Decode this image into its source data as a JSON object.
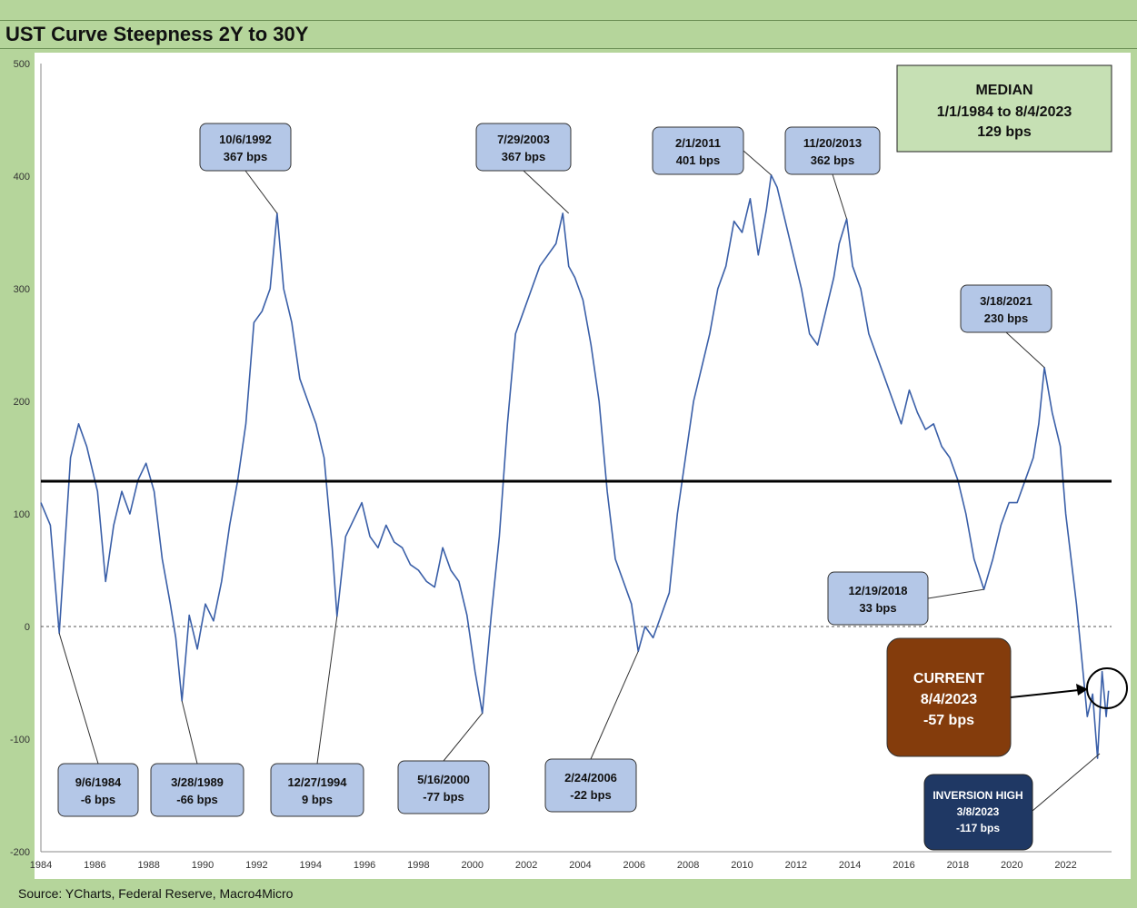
{
  "page": {
    "title": "UST Curve Steepness 2Y to 30Y",
    "source": "Source: YCharts, Federal Reserve, Macro4Micro"
  },
  "colors": {
    "background": "#b5d59b",
    "series": "#3a5fa8",
    "callout_fill": "#b4c7e7",
    "median_fill": "#c6e0b4",
    "current_fill": "#843c0c",
    "inversion_fill": "#1f3864"
  },
  "chart_data": {
    "type": "line",
    "title": "UST Curve Steepness 2Y to 30Y",
    "xlabel": "",
    "ylabel": "",
    "xlim": [
      1984,
      2023.7
    ],
    "ylim": [
      -200,
      500
    ],
    "x_ticks": [
      "1984",
      "1986",
      "1988",
      "1990",
      "1992",
      "1994",
      "1996",
      "1998",
      "2000",
      "2002",
      "2004",
      "2006",
      "2008",
      "2010",
      "2012",
      "2014",
      "2016",
      "2018",
      "2020",
      "2022"
    ],
    "y_ticks": [
      "500",
      "400",
      "300",
      "200",
      "100",
      "0",
      "-100",
      "-200"
    ],
    "median_line": 129,
    "zero_line": 0,
    "series": [
      {
        "name": "",
        "x": [
          1984.0,
          1984.35,
          1984.68,
          1985.1,
          1985.4,
          1985.7,
          1986.1,
          1986.4,
          1986.7,
          1987.0,
          1987.3,
          1987.6,
          1987.9,
          1988.2,
          1988.5,
          1988.8,
          1989.0,
          1989.23,
          1989.5,
          1989.8,
          1990.1,
          1990.4,
          1990.7,
          1991.0,
          1991.3,
          1991.6,
          1991.9,
          1992.2,
          1992.5,
          1992.76,
          1993.0,
          1993.3,
          1993.6,
          1993.9,
          1994.2,
          1994.5,
          1994.8,
          1994.98,
          1995.3,
          1995.6,
          1995.9,
          1996.2,
          1996.5,
          1996.8,
          1997.1,
          1997.4,
          1997.7,
          1998.0,
          1998.3,
          1998.6,
          1998.9,
          1999.2,
          1999.5,
          1999.8,
          2000.1,
          2000.37,
          2000.7,
          2001.0,
          2001.3,
          2001.6,
          2001.9,
          2002.2,
          2002.5,
          2002.8,
          2003.1,
          2003.35,
          2003.57,
          2003.8,
          2004.1,
          2004.4,
          2004.7,
          2005.0,
          2005.3,
          2005.6,
          2005.9,
          2006.15,
          2006.4,
          2006.7,
          2007.0,
          2007.3,
          2007.6,
          2007.9,
          2008.2,
          2008.5,
          2008.8,
          2009.1,
          2009.4,
          2009.7,
          2010.0,
          2010.3,
          2010.6,
          2010.9,
          2011.08,
          2011.3,
          2011.6,
          2011.9,
          2012.2,
          2012.5,
          2012.8,
          2013.1,
          2013.4,
          2013.6,
          2013.88,
          2014.1,
          2014.4,
          2014.7,
          2015.0,
          2015.3,
          2015.6,
          2015.9,
          2016.2,
          2016.5,
          2016.8,
          2017.1,
          2017.4,
          2017.7,
          2018.0,
          2018.3,
          2018.6,
          2018.97,
          2019.3,
          2019.6,
          2019.9,
          2020.2,
          2020.5,
          2020.8,
          2021.0,
          2021.21,
          2021.5,
          2021.8,
          2022.0,
          2022.2,
          2022.4,
          2022.6,
          2022.8,
          2023.0,
          2023.18,
          2023.35,
          2023.5,
          2023.59
        ],
        "y": [
          110,
          90,
          -6,
          150,
          180,
          160,
          120,
          40,
          90,
          120,
          100,
          130,
          145,
          120,
          60,
          20,
          -10,
          -66,
          10,
          -20,
          20,
          5,
          40,
          90,
          130,
          180,
          270,
          280,
          300,
          367,
          300,
          270,
          220,
          200,
          180,
          150,
          70,
          9,
          80,
          95,
          110,
          80,
          70,
          90,
          75,
          70,
          55,
          50,
          40,
          35,
          70,
          50,
          40,
          10,
          -40,
          -77,
          10,
          80,
          180,
          260,
          280,
          300,
          320,
          330,
          340,
          367,
          320,
          310,
          290,
          250,
          200,
          120,
          60,
          40,
          20,
          -22,
          0,
          -10,
          10,
          30,
          100,
          150,
          200,
          230,
          260,
          300,
          320,
          360,
          350,
          380,
          330,
          370,
          401,
          390,
          360,
          330,
          300,
          260,
          250,
          280,
          310,
          340,
          362,
          320,
          300,
          260,
          240,
          220,
          200,
          180,
          210,
          190,
          175,
          180,
          160,
          150,
          130,
          100,
          60,
          33,
          60,
          90,
          110,
          110,
          130,
          150,
          180,
          230,
          190,
          160,
          100,
          60,
          20,
          -30,
          -80,
          -60,
          -117,
          -40,
          -80,
          -57
        ]
      }
    ],
    "annotations": [
      {
        "date": "10/6/1992",
        "value": "367 bps"
      },
      {
        "date": "7/29/2003",
        "value": "367 bps"
      },
      {
        "date": "2/1/2011",
        "value": "401 bps"
      },
      {
        "date": "11/20/2013",
        "value": "362 bps"
      },
      {
        "date": "3/18/2021",
        "value": "230 bps"
      },
      {
        "date": "12/19/2018",
        "value": "33 bps"
      },
      {
        "date": "9/6/1984",
        "value": "-6 bps"
      },
      {
        "date": "3/28/1989",
        "value": "-66 bps"
      },
      {
        "date": "12/27/1994",
        "value": "9 bps"
      },
      {
        "date": "5/16/2000",
        "value": "-77 bps"
      },
      {
        "date": "2/24/2006",
        "value": "-22 bps"
      }
    ],
    "median_box": {
      "line1": "MEDIAN",
      "line2": "1/1/1984 to 8/4/2023",
      "line3": "129 bps"
    },
    "current_box": {
      "line1": "CURRENT",
      "line2": "8/4/2023",
      "line3": "-57 bps"
    },
    "inversion_box": {
      "line1": "INVERSION HIGH",
      "line2": "3/8/2023",
      "line3": "-117 bps"
    }
  }
}
